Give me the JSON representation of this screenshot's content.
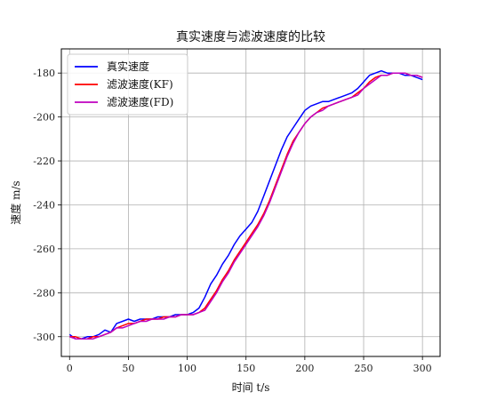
{
  "chart_data": {
    "type": "line",
    "title": "真实速度与滤波速度的比较",
    "xlabel": "时间 t/s",
    "ylabel": "速度 m/s",
    "xlim": [
      -7,
      315
    ],
    "ylim": [
      -309,
      -169
    ],
    "xticks": [
      0,
      50,
      100,
      150,
      200,
      250,
      300
    ],
    "yticks": [
      -300,
      -280,
      -260,
      -240,
      -220,
      -200,
      -180
    ],
    "grid": true,
    "legend_position": "top-left",
    "series": [
      {
        "name": "真实速度",
        "color": "#0000ff",
        "x": [
          0,
          5,
          10,
          15,
          20,
          25,
          30,
          35,
          40,
          45,
          50,
          55,
          60,
          65,
          70,
          75,
          80,
          85,
          90,
          95,
          100,
          105,
          110,
          115,
          120,
          125,
          130,
          135,
          140,
          145,
          150,
          155,
          160,
          165,
          170,
          175,
          180,
          185,
          190,
          195,
          200,
          205,
          210,
          215,
          220,
          225,
          230,
          235,
          240,
          245,
          250,
          255,
          260,
          265,
          270,
          275,
          280,
          285,
          290,
          295,
          300
        ],
        "y": [
          -299,
          -301,
          -301,
          -300,
          -300,
          -299,
          -297,
          -298,
          -294,
          -293,
          -292,
          -293,
          -292,
          -292,
          -292,
          -291,
          -291,
          -291,
          -290,
          -290,
          -290,
          -289,
          -287,
          -282,
          -276,
          -272,
          -267,
          -263,
          -258,
          -254,
          -251,
          -248,
          -243,
          -236,
          -229,
          -222,
          -215,
          -209,
          -205,
          -201,
          -197,
          -195,
          -194,
          -193,
          -193,
          -192,
          -191,
          -190,
          -189,
          -187,
          -184,
          -181,
          -180,
          -179,
          -180,
          -180,
          -180,
          -181,
          -181,
          -182,
          -183
        ]
      },
      {
        "name": "滤波速度(KF)",
        "color": "#ff0000",
        "x": [
          0,
          5,
          10,
          15,
          20,
          25,
          30,
          35,
          40,
          45,
          50,
          55,
          60,
          65,
          70,
          75,
          80,
          85,
          90,
          95,
          100,
          105,
          110,
          115,
          120,
          125,
          130,
          135,
          140,
          145,
          150,
          155,
          160,
          165,
          170,
          175,
          180,
          185,
          190,
          195,
          200,
          205,
          210,
          215,
          220,
          225,
          230,
          235,
          240,
          245,
          250,
          255,
          260,
          265,
          270,
          275,
          280,
          285,
          290,
          295,
          300
        ],
        "y": [
          -300,
          -300,
          -301,
          -301,
          -300,
          -300,
          -299,
          -298,
          -296,
          -295,
          -294,
          -294,
          -293,
          -292,
          -292,
          -292,
          -291,
          -291,
          -291,
          -290,
          -290,
          -290,
          -289,
          -287,
          -283,
          -279,
          -274,
          -270,
          -265,
          -261,
          -257,
          -253,
          -249,
          -244,
          -238,
          -231,
          -224,
          -217,
          -211,
          -207,
          -203,
          -200,
          -198,
          -196,
          -195,
          -194,
          -193,
          -192,
          -191,
          -189,
          -187,
          -184,
          -182,
          -181,
          -181,
          -180,
          -180,
          -180,
          -181,
          -181,
          -182
        ]
      },
      {
        "name": "滤波速度(FD)",
        "color": "#bf00bf",
        "x": [
          0,
          5,
          10,
          15,
          20,
          25,
          30,
          35,
          40,
          45,
          50,
          55,
          60,
          65,
          70,
          75,
          80,
          85,
          90,
          95,
          100,
          105,
          110,
          115,
          120,
          125,
          130,
          135,
          140,
          145,
          150,
          155,
          160,
          165,
          170,
          175,
          180,
          185,
          190,
          195,
          200,
          205,
          210,
          215,
          220,
          225,
          230,
          235,
          240,
          245,
          250,
          255,
          260,
          265,
          270,
          275,
          280,
          285,
          290,
          295,
          300
        ],
        "y": [
          -300,
          -301,
          -301,
          -301,
          -301,
          -300,
          -299,
          -298,
          -296,
          -296,
          -295,
          -294,
          -293,
          -293,
          -292,
          -292,
          -292,
          -291,
          -291,
          -290,
          -290,
          -290,
          -289,
          -288,
          -284,
          -280,
          -275,
          -271,
          -266,
          -262,
          -258,
          -254,
          -250,
          -245,
          -239,
          -232,
          -225,
          -218,
          -212,
          -207,
          -203,
          -200,
          -198,
          -197,
          -195,
          -194,
          -193,
          -192,
          -191,
          -190,
          -187,
          -185,
          -183,
          -181,
          -181,
          -180,
          -180,
          -180,
          -181,
          -181,
          -182
        ]
      }
    ]
  }
}
